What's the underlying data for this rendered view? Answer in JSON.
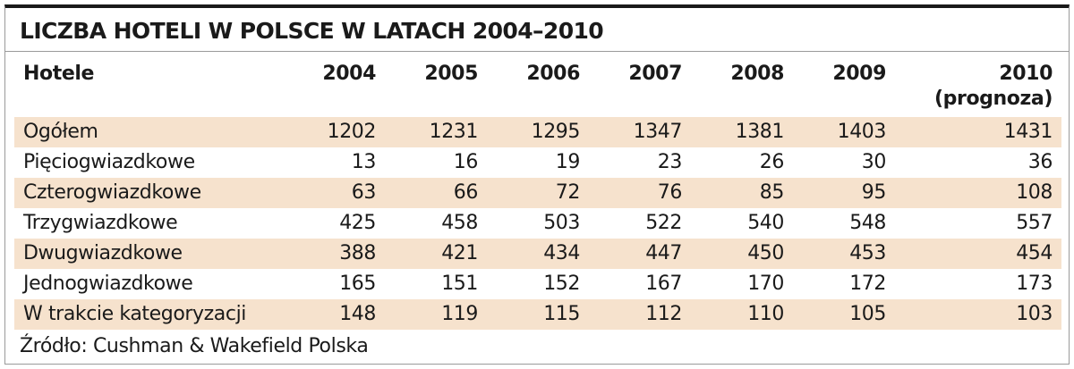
{
  "title": "LICZBA HOTELI W POLSCE W LATACH 2004–2010",
  "table": {
    "header_label": "Hotele",
    "years": [
      {
        "year": "2004",
        "note": ""
      },
      {
        "year": "2005",
        "note": ""
      },
      {
        "year": "2006",
        "note": ""
      },
      {
        "year": "2007",
        "note": ""
      },
      {
        "year": "2008",
        "note": ""
      },
      {
        "year": "2009",
        "note": ""
      },
      {
        "year": "2010",
        "note": "(prognoza)"
      }
    ],
    "rows": [
      {
        "label": "Ogółem",
        "values": [
          "1202",
          "1231",
          "1295",
          "1347",
          "1381",
          "1403",
          "1431"
        ]
      },
      {
        "label": "Pięciogwiazdkowe",
        "values": [
          "13",
          "16",
          "19",
          "23",
          "26",
          "30",
          "36"
        ]
      },
      {
        "label": "Czterogwiazdkowe",
        "values": [
          "63",
          "66",
          "72",
          "76",
          "85",
          "95",
          "108"
        ]
      },
      {
        "label": "Trzygwiazdkowe",
        "values": [
          "425",
          "458",
          "503",
          "522",
          "540",
          "548",
          "557"
        ]
      },
      {
        "label": "Dwugwiazdkowe",
        "values": [
          "388",
          "421",
          "434",
          "447",
          "450",
          "453",
          "454"
        ]
      },
      {
        "label": "Jednogwiazdkowe",
        "values": [
          "165",
          "151",
          "152",
          "167",
          "170",
          "172",
          "173"
        ]
      },
      {
        "label": "W trakcie kategoryzacji",
        "values": [
          "148",
          "119",
          "115",
          "112",
          "110",
          "105",
          "103"
        ]
      }
    ]
  },
  "source": "Źródło: Cushman & Wakefield Polska",
  "colors": {
    "row_shade": "#f6e2cd",
    "text": "#1a1a1a",
    "rule": "#9a9a9a"
  }
}
